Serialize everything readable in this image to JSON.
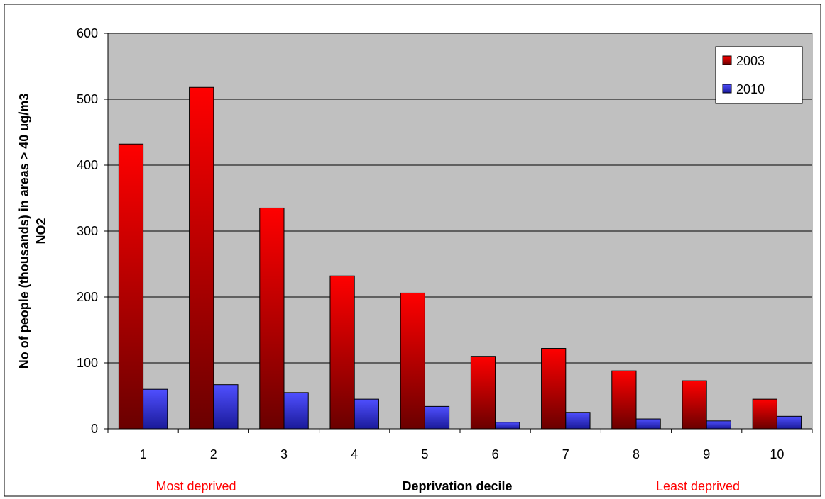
{
  "chart_data": {
    "type": "bar",
    "categories": [
      "1",
      "2",
      "3",
      "4",
      "5",
      "6",
      "7",
      "8",
      "9",
      "10"
    ],
    "series": [
      {
        "name": "2003",
        "values": [
          432,
          518,
          335,
          232,
          206,
          110,
          122,
          88,
          73,
          45
        ],
        "color": "#ff0000",
        "dark_color": "#6a0000"
      },
      {
        "name": "2010",
        "values": [
          60,
          67,
          55,
          45,
          34,
          10,
          25,
          15,
          12,
          19
        ],
        "color": "#4f4fff",
        "dark_color": "#1a1a99"
      }
    ],
    "title": "",
    "xlabel": "Deprivation decile",
    "ylabel_line1": "No of people (thousands) in areas > 40 ug/m3",
    "ylabel_line2": "NO2",
    "ylim": [
      0,
      600
    ],
    "yticks": [
      0,
      100,
      200,
      300,
      400,
      500,
      600
    ],
    "grid": true,
    "legend_position": "top-right",
    "plot_background": "#c0c0c0",
    "annotations": {
      "left": "Most deprived",
      "right": "Least deprived",
      "color": "#ff0000"
    }
  }
}
